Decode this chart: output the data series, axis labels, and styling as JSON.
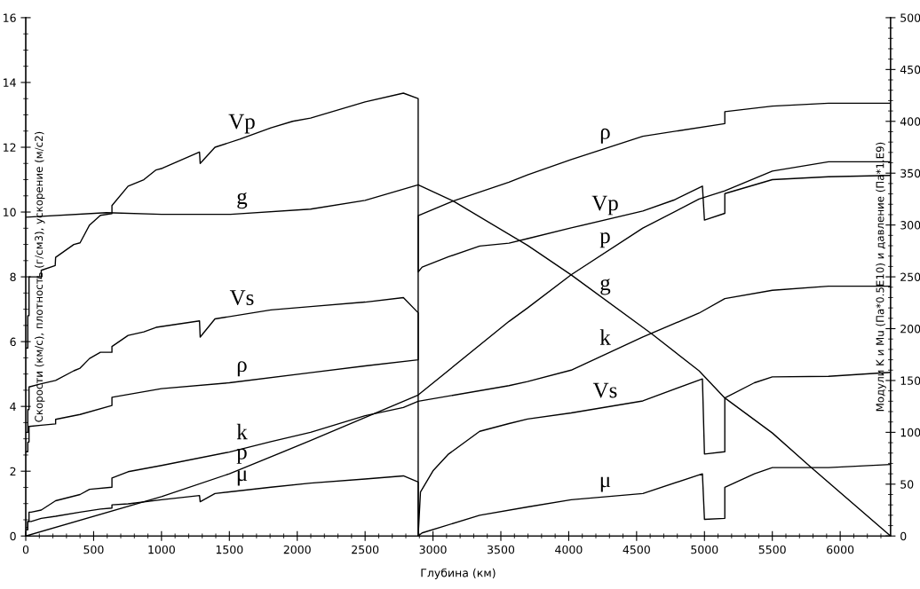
{
  "chart_data": {
    "type": "line",
    "xlabel": "Глубина (км)",
    "ylabel": "Скорости (км/с), плотность (г/см3), ускорение (м/с2)",
    "y2label": "Модули K и Mu (Па*0.5E10) и давление (Па*1.E9)",
    "xlim": [
      0,
      6371
    ],
    "xticks": [
      0,
      500,
      1000,
      1500,
      2000,
      2500,
      3000,
      3500,
      4000,
      4500,
      5000,
      5500,
      6000
    ],
    "ylim": [
      0,
      16
    ],
    "yticks": [
      0,
      2,
      4,
      6,
      8,
      10,
      12,
      14,
      16
    ],
    "y2lim": [
      0,
      500
    ],
    "y2ticks": [
      0,
      50,
      100,
      150,
      200,
      250,
      300,
      350,
      400,
      450,
      500
    ],
    "grid": false,
    "legend": false,
    "marker": "none",
    "line_style": "solid",
    "series": [
      {
        "name": "Vp",
        "color": "#000000",
        "x": [
          0,
          15,
          15,
          24,
          24,
          80,
          114,
          114,
          217,
          220,
          354,
          400,
          470,
          550,
          635,
          635,
          754,
          870,
          960,
          1006,
          1280,
          1285,
          1394,
          1577,
          1806,
          1966,
          2098,
          2500,
          2782,
          2891,
          2891,
          2920,
          3115,
          3344,
          3560,
          3697,
          4018,
          4546,
          4775,
          4985,
          5000,
          5150,
          5150,
          5500,
          5914,
          6371
        ],
        "values": [
          5.8,
          5.8,
          6.8,
          6.8,
          8.0,
          8.0,
          7.95,
          8.2,
          8.35,
          8.6,
          9.0,
          9.05,
          9.6,
          9.9,
          9.95,
          10.2,
          10.8,
          11.0,
          11.3,
          11.35,
          11.85,
          11.5,
          12.0,
          12.25,
          12.6,
          12.8,
          12.9,
          13.4,
          13.67,
          13.5,
          8.15,
          8.3,
          8.62,
          8.95,
          9.04,
          9.18,
          9.51,
          10.03,
          10.37,
          10.8,
          9.75,
          9.96,
          10.57,
          11.0,
          11.09,
          11.13
        ]
      },
      {
        "name": "Vs",
        "color": "#000000",
        "x": [
          0,
          15,
          15,
          24,
          24,
          114,
          220,
          354,
          400,
          470,
          550,
          635,
          635,
          754,
          870,
          960,
          1280,
          1285,
          1394,
          1806,
          2098,
          2500,
          2782,
          2891,
          2891,
          2908,
          3000,
          3115,
          3344,
          3560,
          3697,
          4018,
          4546,
          4985,
          5000,
          5150,
          5150,
          5368,
          5500,
          5914,
          6371
        ],
        "values": [
          3.2,
          3.2,
          3.9,
          3.9,
          4.6,
          4.7,
          4.8,
          5.1,
          5.18,
          5.48,
          5.67,
          5.67,
          5.85,
          6.19,
          6.3,
          6.44,
          6.64,
          6.14,
          6.7,
          6.98,
          7.08,
          7.22,
          7.36,
          6.89,
          0,
          1.36,
          2.01,
          2.53,
          3.23,
          3.47,
          3.61,
          3.8,
          4.17,
          4.85,
          2.53,
          2.6,
          4.26,
          4.73,
          4.91,
          4.93,
          5.05
        ]
      },
      {
        "name": "ρ",
        "color": "#000000",
        "x": [
          0,
          15,
          15,
          24,
          24,
          114,
          220,
          220,
          400,
          635,
          635,
          1000,
          1500,
          2098,
          2500,
          2891,
          2891,
          3149,
          3560,
          3697,
          4018,
          4546,
          5150,
          5150,
          5500,
          5914,
          6371
        ],
        "values": [
          2.6,
          2.6,
          2.9,
          2.9,
          3.38,
          3.42,
          3.46,
          3.6,
          3.75,
          4.03,
          4.28,
          4.55,
          4.73,
          5.04,
          5.25,
          5.44,
          9.89,
          10.34,
          10.92,
          11.15,
          11.62,
          12.34,
          12.73,
          13.1,
          13.27,
          13.36,
          13.36
        ]
      },
      {
        "name": "g",
        "color": "#000000",
        "x": [
          0,
          594,
          1000,
          1509,
          2098,
          2500,
          2891,
          3149,
          3697,
          4018,
          4615,
          4960,
          5150,
          5500,
          5777,
          6371
        ],
        "values": [
          9.84,
          9.98,
          9.93,
          9.93,
          10.09,
          10.36,
          10.84,
          10.34,
          8.97,
          8.06,
          6.23,
          5.1,
          4.26,
          3.18,
          2.15,
          0
        ]
      },
      {
        "name": "k",
        "axis": "y2",
        "color": "#000000",
        "x": [
          0,
          15,
          15,
          24,
          24,
          40,
          114,
          220,
          400,
          470,
          635,
          635,
          754,
          1000,
          1500,
          1806,
          2098,
          2500,
          2782,
          2891,
          3560,
          3697,
          4018,
          4546,
          4960,
          5150,
          5500,
          5914,
          6371
        ],
        "values": [
          8,
          8,
          14,
          14,
          23,
          23,
          25,
          34,
          40,
          45,
          47,
          56,
          62,
          68,
          81,
          91,
          100,
          116,
          124,
          130,
          145,
          149,
          160,
          192,
          215,
          229,
          237,
          241,
          241
        ]
      },
      {
        "name": "p",
        "axis": "y2",
        "color": "#000000",
        "x": [
          0,
          1000,
          1500,
          2098,
          2891,
          3560,
          3697,
          4018,
          4546,
          4960,
          5150,
          5500,
          5914,
          6371
        ],
        "values": [
          0,
          38,
          60,
          92,
          136,
          207,
          220,
          252,
          297,
          325,
          333,
          352,
          361,
          361
        ]
      },
      {
        "name": "μ",
        "axis": "y2",
        "color": "#000000",
        "x": [
          0,
          15,
          15,
          40,
          114,
          220,
          400,
          550,
          635,
          635,
          754,
          1000,
          1280,
          1285,
          1394,
          1806,
          2098,
          2500,
          2782,
          2891,
          2891,
          2920,
          3344,
          3697,
          4018,
          4546,
          4985,
          5000,
          5150,
          5150,
          5368,
          5500,
          5914,
          6371
        ],
        "values": [
          6,
          6,
          14,
          14,
          17,
          19,
          23,
          26,
          27,
          30,
          31,
          35,
          39,
          33,
          41,
          47,
          51,
          55,
          58,
          52,
          0,
          3,
          20,
          28,
          35,
          41,
          60,
          16,
          17,
          47,
          60,
          66,
          66,
          69
        ]
      }
    ]
  }
}
